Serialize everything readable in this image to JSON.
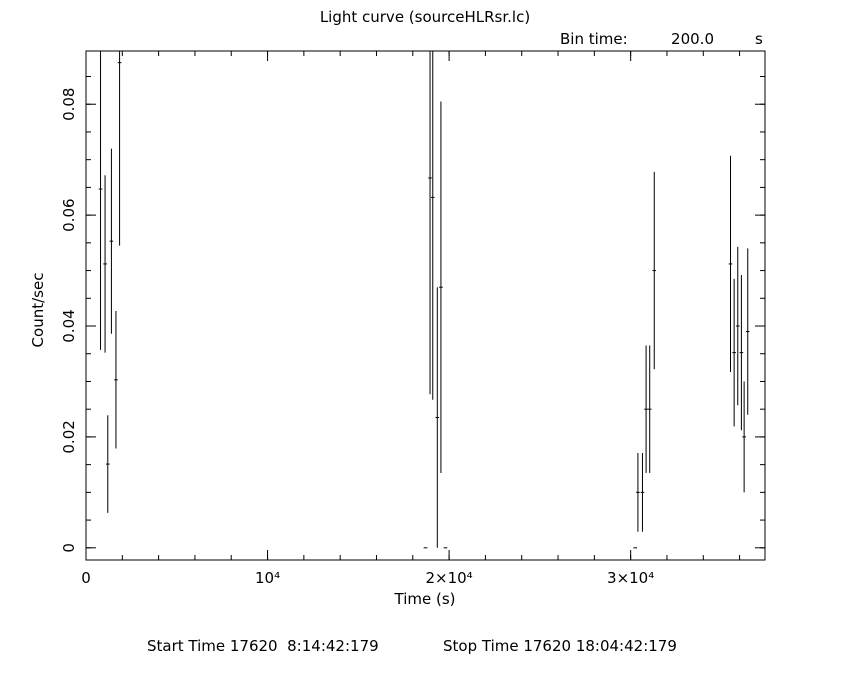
{
  "chart_data": {
    "type": "errorbar",
    "title": "Light curve (sourceHLRsr.lc)",
    "bin_time_label": "Bin time:",
    "bin_time": {
      "value": 200,
      "label": "200.0"
    },
    "bin_time_unit": "s",
    "xlabel": "Time (s)",
    "ylabel": "Count/sec",
    "color": "#000000",
    "x": [
      800,
      1050,
      1200,
      1400,
      1650,
      1850,
      18700,
      18950,
      19100,
      19350,
      19550,
      19800,
      30250,
      30400,
      30650,
      30850,
      31050,
      31300,
      35500,
      35700,
      35900,
      36100,
      36250,
      36450
    ],
    "values": [
      0.0647,
      0.0512,
      0.0151,
      0.0553,
      0.0303,
      0.0875,
      0,
      0.0667,
      0.0632,
      0.0235,
      0.047,
      0,
      0,
      0.01,
      0.01,
      0.025,
      0.025,
      0.05,
      0.0512,
      0.0352,
      0.04,
      0.0352,
      0.02,
      0.039
    ],
    "yerr": [
      0.029,
      0.016,
      0.0088,
      0.0167,
      0.0124,
      0.033,
      0,
      0.039,
      0.0365,
      0.0235,
      0.0335,
      0,
      0,
      0.0071,
      0.0071,
      0.0115,
      0.0115,
      0.0178,
      0.0195,
      0.0133,
      0.0143,
      0.014,
      0.01,
      0.015
    ],
    "xlim": [
      0,
      37400
    ],
    "ylim": [
      -0.0022,
      0.0896
    ],
    "xticks": [
      0,
      {
        "value": 10000,
        "label": "10⁴"
      },
      {
        "value": 20000,
        "label": "2×10⁴"
      },
      {
        "value": 30000,
        "label": "3×10⁴"
      }
    ],
    "yticks": [
      0,
      0.02,
      0.04,
      0.06,
      0.08
    ],
    "xminor_step": 2000,
    "yminor_step": 0.005
  },
  "footer": {
    "start": "Start Time 17620  8:14:42:179",
    "stop": "Stop Time 17620 18:04:42:179"
  }
}
